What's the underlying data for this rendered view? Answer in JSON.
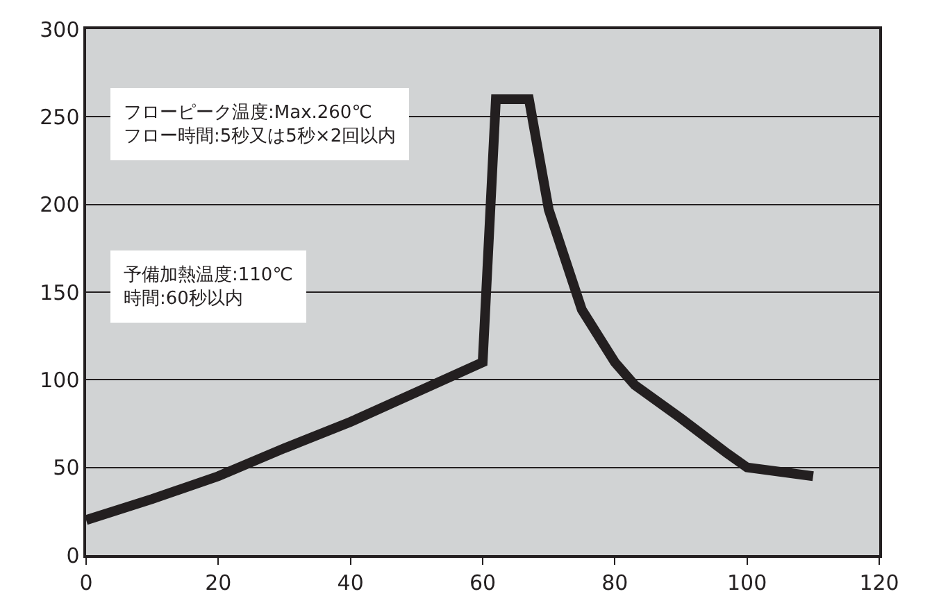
{
  "chart_data": {
    "type": "line",
    "x": [
      0,
      10,
      20,
      30,
      40,
      50,
      60,
      62,
      67,
      70,
      75,
      80,
      83,
      90,
      97,
      100,
      110
    ],
    "series": [
      {
        "color": "#231f20",
        "values": [
          20,
          32,
          45,
          61,
          76,
          93,
          110,
          260,
          260,
          197,
          140,
          110,
          97,
          78,
          58,
          50,
          45
        ]
      }
    ],
    "xlim": [
      0,
      120
    ],
    "xticks": [
      0,
      20,
      40,
      60,
      80,
      100,
      120
    ],
    "ylim": [
      0,
      300
    ],
    "yticks": [
      0,
      50,
      100,
      150,
      200,
      250,
      300
    ],
    "grid": "y",
    "marker": "none",
    "line_style": "solid",
    "annotations": [
      "フローピーク温度:Max.260℃\nフロー時間:5秒又は5秒×2回以内",
      "予備加熱温度:110℃\n時間:60秒以内"
    ]
  }
}
